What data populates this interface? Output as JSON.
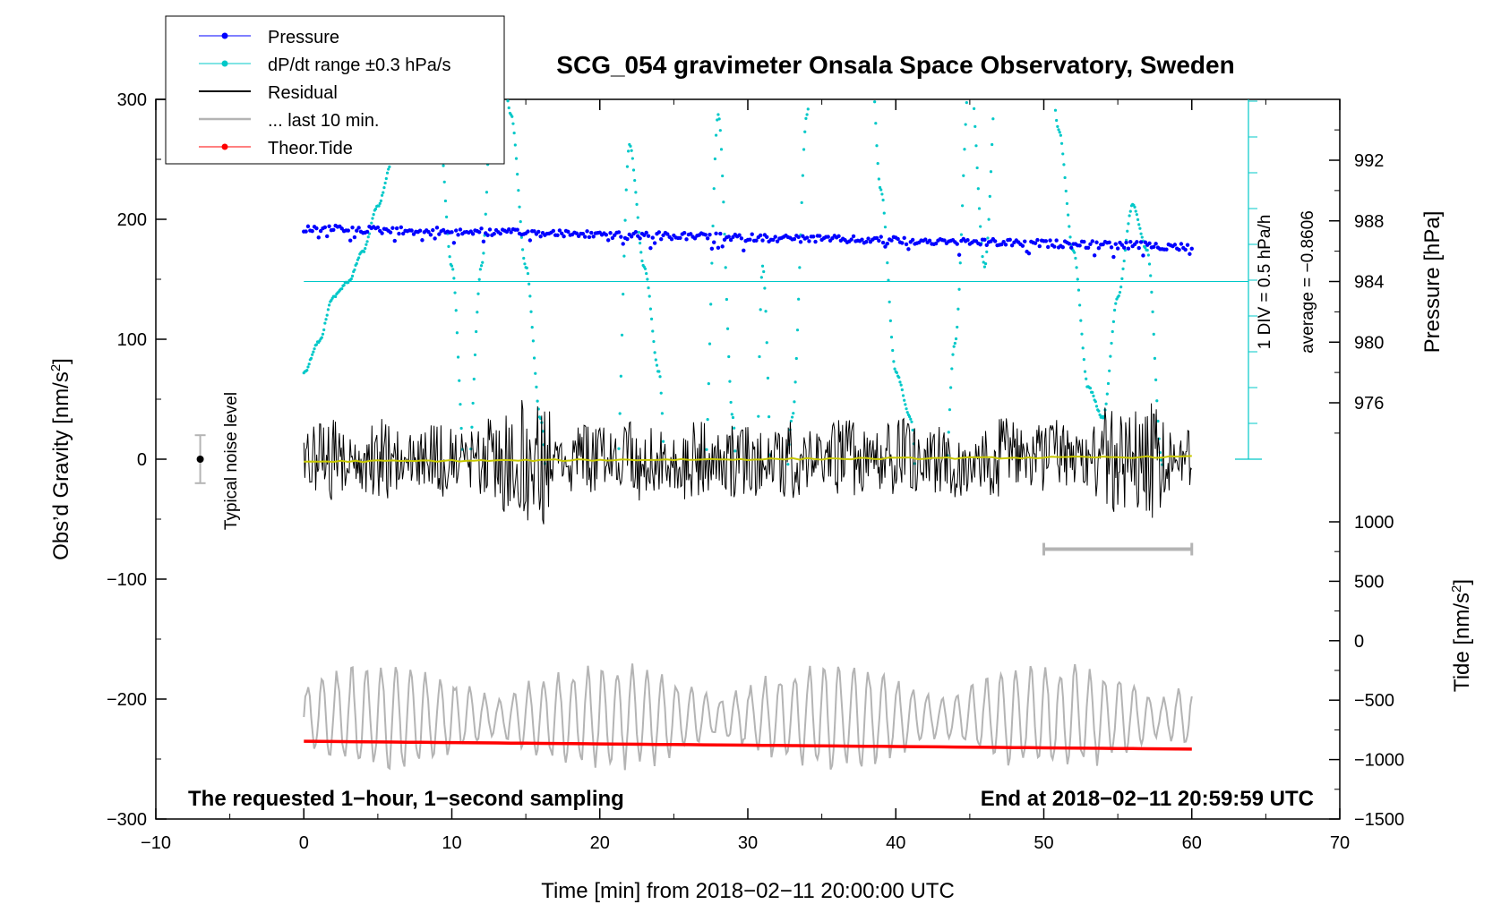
{
  "chart_data": {
    "type": "line",
    "title": "SCG_054 gravimeter Onsala Space Observatory, Sweden",
    "xlabel": "Time [min] from 2018−02−11 20:00:00 UTC",
    "ylabel_left_main": "Obs’d Gravity [nm/s",
    "ylabel_left_sup": "2",
    "ylabel_left_close": "]",
    "ylabel_right_pressure": "Pressure [hPa]",
    "ylabel_right_tide_main": "Tide [nm/s",
    "ylabel_right_tide_sup": "2",
    "ylabel_right_tide_close": "]",
    "xlim": [
      -10,
      70
    ],
    "ylim": [
      -300,
      300
    ],
    "x_ticks": [
      "−10",
      "0",
      "10",
      "20",
      "30",
      "40",
      "50",
      "60",
      "70"
    ],
    "y_ticks": [
      "−300",
      "−200",
      "−100",
      "0",
      "100",
      "200",
      "300"
    ],
    "pressure_ticks": [
      "976",
      "980",
      "984",
      "988",
      "992"
    ],
    "pressure_tick_values": [
      976,
      980,
      984,
      988,
      992
    ],
    "tide_ticks": [
      "−1500",
      "−1000",
      "−500",
      "0",
      "500",
      "1000"
    ],
    "tide_tick_values": [
      -1500,
      -1000,
      -500,
      0,
      500,
      1000
    ],
    "legend": [
      {
        "label": "Pressure",
        "color": "#0000ff",
        "marker": true
      },
      {
        "label": "dP/dt range ±0.3 hPa/s",
        "color": "#00c8c8",
        "marker": true
      },
      {
        "label": "Residual",
        "color": "#000000",
        "marker": false
      },
      {
        "label": "... last 10 min.",
        "color": "#b4b4b4",
        "marker": false
      },
      {
        "label": "Theor.Tide",
        "color": "#ff0000",
        "marker": true
      }
    ],
    "noise_level_label": "Typical noise level",
    "rate_scale_label": "1 DIV = 0.5 hPa/h",
    "rate_average_label": "average = −0.8606",
    "note_left": "The requested 1−hour, 1−second sampling",
    "note_right": "End at 2018−02−11 20:59:59 UTC",
    "series": [
      {
        "name": "Pressure",
        "axis": "pressure",
        "unit": "hPa",
        "start": 987.5,
        "end": 986.3,
        "scatter": 0.35
      },
      {
        "name": "dP/dt range ±0.3 hPa/s",
        "axis": "rate",
        "points": [
          [
            0,
            978
          ],
          [
            1,
            980
          ],
          [
            2,
            983
          ],
          [
            3,
            984
          ],
          [
            4,
            986
          ],
          [
            5,
            989
          ],
          [
            6,
            992
          ],
          [
            7,
            1001
          ],
          [
            8,
            993
          ],
          [
            9,
            996
          ],
          [
            10,
            985
          ],
          [
            11,
            970
          ],
          [
            12,
            985
          ],
          [
            13,
            1002
          ],
          [
            14,
            995
          ],
          [
            15,
            985
          ],
          [
            16,
            975
          ],
          [
            17,
            960
          ],
          [
            18,
            948
          ],
          [
            19,
            940
          ],
          [
            20,
            945
          ],
          [
            21,
            968
          ],
          [
            22,
            993
          ],
          [
            23,
            985
          ],
          [
            24,
            978
          ],
          [
            25,
            955
          ],
          [
            26,
            945
          ],
          [
            27,
            970
          ],
          [
            28,
            995
          ],
          [
            29,
            975
          ],
          [
            30,
            935
          ],
          [
            31,
            985
          ],
          [
            32,
            960
          ],
          [
            33,
            975
          ],
          [
            34,
            995
          ],
          [
            35,
            1015
          ],
          [
            36,
            1045
          ],
          [
            37,
            1030
          ],
          [
            38,
            1005
          ],
          [
            39,
            990
          ],
          [
            40,
            978
          ],
          [
            41,
            975
          ],
          [
            42,
            960
          ],
          [
            43,
            965
          ],
          [
            44,
            980
          ],
          [
            45,
            998
          ],
          [
            46,
            985
          ],
          [
            47,
            1001
          ],
          [
            48,
            1005
          ],
          [
            49,
            1021
          ],
          [
            50,
            1005
          ],
          [
            51,
            994
          ],
          [
            52,
            986
          ],
          [
            53,
            977
          ],
          [
            54,
            975
          ],
          [
            55,
            983
          ],
          [
            56,
            989
          ],
          [
            57,
            986
          ],
          [
            58,
            972
          ],
          [
            59,
            950
          ],
          [
            60,
            936
          ]
        ],
        "scatter": 3.5
      },
      {
        "name": "Residual",
        "axis": "gravity",
        "unit": "nm/s²",
        "amplitude": 35
      },
      {
        "name": "... last 10 min.",
        "axis": "gravity",
        "offset": -215,
        "amplitude": 40
      },
      {
        "name": "Theor.Tide",
        "axis": "tide",
        "unit": "nm/s²",
        "start": -846,
        "end": -912
      }
    ],
    "rate_axis": {
      "zero_line": 984.0,
      "div_hpa_per_h": 0.5,
      "ticks": 10
    },
    "last10_window_min": [
      50,
      60
    ],
    "noise_level": {
      "x": -7,
      "y": 0,
      "range": [
        -20,
        20
      ]
    },
    "grid": false,
    "legend_position": "top-left"
  }
}
